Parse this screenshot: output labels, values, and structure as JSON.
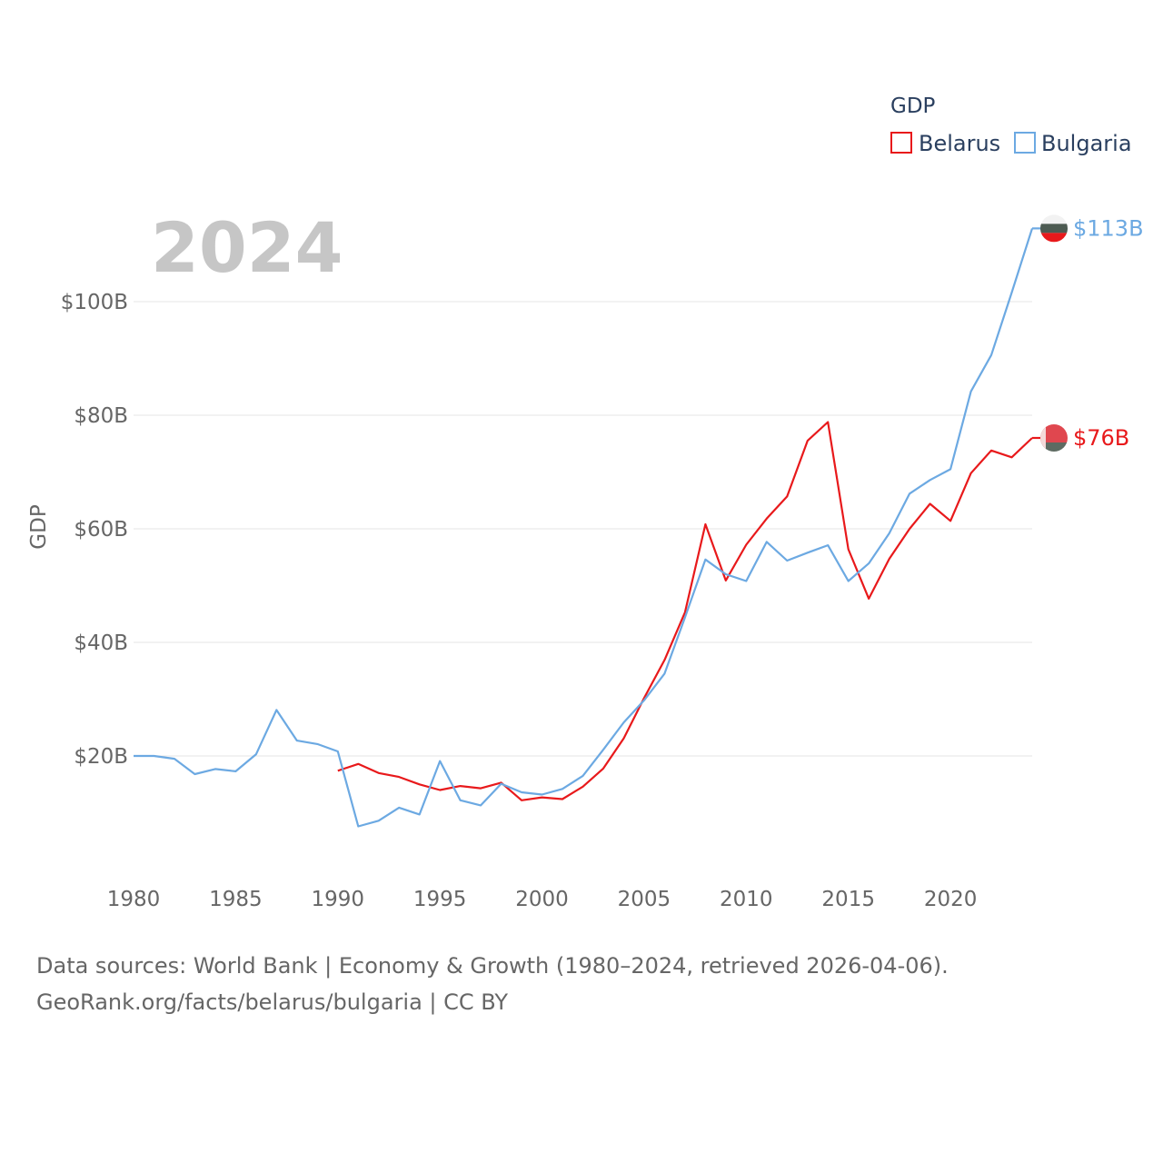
{
  "chart_data": {
    "type": "line",
    "ylabel": "GDP",
    "legend_title": "GDP",
    "year_label": "2024",
    "xlim": [
      1980,
      2024
    ],
    "ylim": [
      0,
      120
    ],
    "x_ticks": [
      1980,
      1985,
      1990,
      1995,
      2000,
      2005,
      2010,
      2015,
      2020
    ],
    "y_ticks": [
      {
        "value": 20,
        "label": "$20B"
      },
      {
        "value": 40,
        "label": "$40B"
      },
      {
        "value": 60,
        "label": "$60B"
      },
      {
        "value": 80,
        "label": "$80B"
      },
      {
        "value": 100,
        "label": "$100B"
      }
    ],
    "series": [
      {
        "name": "Belarus",
        "color": "#e8191b",
        "end_label": "$76B",
        "x": [
          1990,
          1991,
          1992,
          1993,
          1994,
          1995,
          1996,
          1997,
          1998,
          1999,
          2000,
          2001,
          2002,
          2003,
          2004,
          2005,
          2006,
          2007,
          2008,
          2009,
          2010,
          2011,
          2012,
          2013,
          2014,
          2015,
          2016,
          2017,
          2018,
          2019,
          2020,
          2021,
          2022,
          2023,
          2024
        ],
        "values": [
          17.4,
          18.6,
          17.0,
          16.3,
          15.0,
          14.0,
          14.7,
          14.3,
          15.3,
          12.2,
          12.7,
          12.4,
          14.6,
          17.8,
          23.1,
          30.2,
          36.9,
          45.3,
          60.8,
          50.9,
          57.2,
          61.8,
          65.7,
          75.5,
          78.8,
          56.4,
          47.7,
          54.7,
          60.0,
          64.4,
          61.4,
          69.8,
          73.8,
          72.6,
          76.0
        ]
      },
      {
        "name": "Bulgaria",
        "color": "#6ca9e2",
        "end_label": "$113B",
        "x": [
          1980,
          1981,
          1982,
          1983,
          1984,
          1985,
          1986,
          1987,
          1988,
          1989,
          1990,
          1991,
          1992,
          1993,
          1994,
          1995,
          1996,
          1997,
          1998,
          1999,
          2000,
          2001,
          2002,
          2003,
          2004,
          2005,
          2006,
          2007,
          2008,
          2009,
          2010,
          2011,
          2012,
          2013,
          2014,
          2015,
          2016,
          2017,
          2018,
          2019,
          2020,
          2021,
          2022,
          2023,
          2024
        ],
        "values": [
          20.0,
          20.0,
          19.5,
          16.8,
          17.7,
          17.3,
          20.3,
          28.1,
          22.7,
          22.1,
          20.8,
          7.6,
          8.6,
          10.9,
          9.7,
          19.1,
          12.2,
          11.3,
          15.1,
          13.6,
          13.2,
          14.2,
          16.5,
          21.1,
          25.9,
          29.8,
          34.5,
          44.4,
          54.6,
          52.0,
          50.8,
          57.7,
          54.4,
          55.8,
          57.1,
          50.8,
          53.9,
          59.2,
          66.2,
          68.6,
          70.5,
          84.2,
          90.6,
          101.6,
          112.9
        ]
      }
    ]
  },
  "footer": {
    "line1": "Data sources: World Bank | Economy & Growth (1980–2024, retrieved 2026-04-06).",
    "line2": "GeoRank.org/facts/belarus/bulgaria | CC BY"
  }
}
